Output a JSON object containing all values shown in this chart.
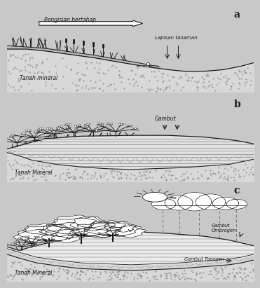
{
  "panel_a_label": "a",
  "panel_b_label": "b",
  "panel_c_label": "c",
  "panel_a_arrow_text": "Pengisian bertahap",
  "panel_a_label1": "Tanah mineral",
  "panel_a_label2": "Lapisan tanaman",
  "panel_b_label1": "Tanah Mineral",
  "panel_b_label2": "Gambut",
  "panel_c_label1": "Tanah Mineral",
  "panel_c_label2": "Gambut\nOmbrogen",
  "panel_c_label3": "Gambut Topogen",
  "bg_color": "#c8c8c8",
  "panel_bg": "#ffffff",
  "line_color": "#1a1a1a",
  "text_color": "#1a1a1a",
  "soil_color": "#d8d8d8",
  "peat_color": "#e8e8e8"
}
